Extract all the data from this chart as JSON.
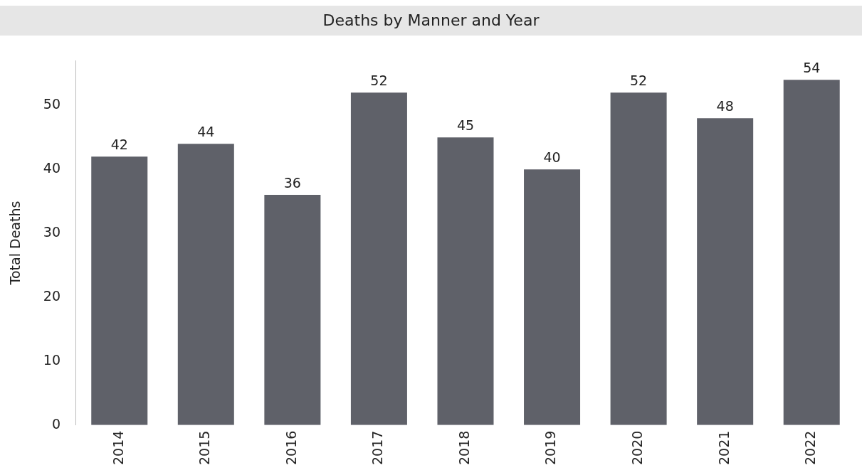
{
  "chart_data": {
    "type": "bar",
    "title": "Deaths by Manner and Year",
    "ylabel": "Total Deaths",
    "categories": [
      "2014",
      "2015",
      "2016",
      "2017",
      "2018",
      "2019",
      "2020",
      "2021",
      "2022"
    ],
    "values": [
      42,
      44,
      36,
      52,
      45,
      40,
      52,
      48,
      54
    ],
    "color": "#5f6169",
    "ylim": [
      0,
      57
    ],
    "yticks": [
      0,
      10,
      20,
      30,
      40,
      50
    ],
    "grid": false,
    "legend": false,
    "data_labels": true
  }
}
